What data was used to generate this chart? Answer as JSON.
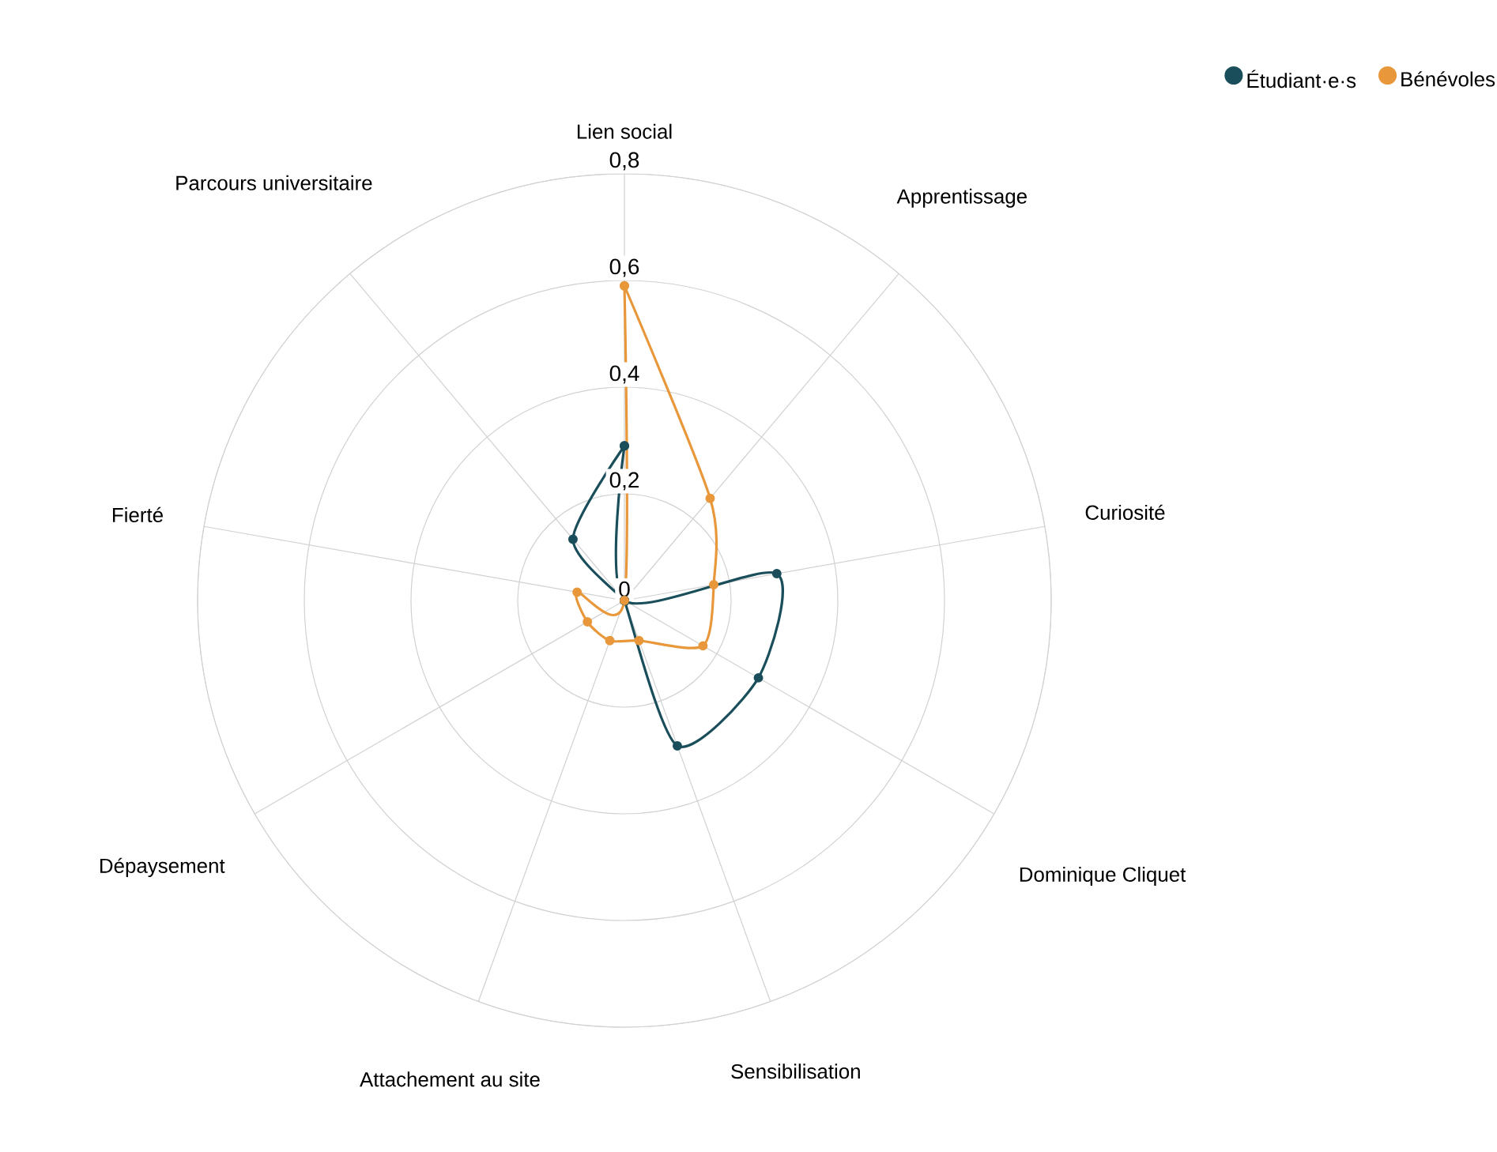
{
  "chart_data": {
    "type": "radar",
    "categories": [
      "Lien social",
      "Apprentissage",
      "Curiosité",
      "Dominique Cliquet",
      "Sensibilisation",
      "Attachement au site",
      "Dépaysement",
      "Fierté",
      "Parcours universitaire"
    ],
    "series": [
      {
        "name": "Étudiant·e·s",
        "color": "#1a4e5a",
        "values": [
          0.29,
          0,
          0.29,
          0.29,
          0.29,
          0,
          0,
          0,
          0.15
        ]
      },
      {
        "name": "Bénévoles",
        "color": "#e8973a",
        "values": [
          0.59,
          0.25,
          0.17,
          0.17,
          0.08,
          0.08,
          0.08,
          0.09,
          0
        ]
      }
    ],
    "ylim": [
      0,
      0.8
    ],
    "yticks": [
      {
        "value": 0,
        "label": "0"
      },
      {
        "value": 0.2,
        "label": "0,2"
      },
      {
        "value": 0.4,
        "label": "0,4"
      },
      {
        "value": 0.6,
        "label": "0,6"
      },
      {
        "value": 0.8,
        "label": "0,8"
      }
    ],
    "grid": true,
    "legend": "top right",
    "marker": "circle",
    "line_style": "solid"
  }
}
